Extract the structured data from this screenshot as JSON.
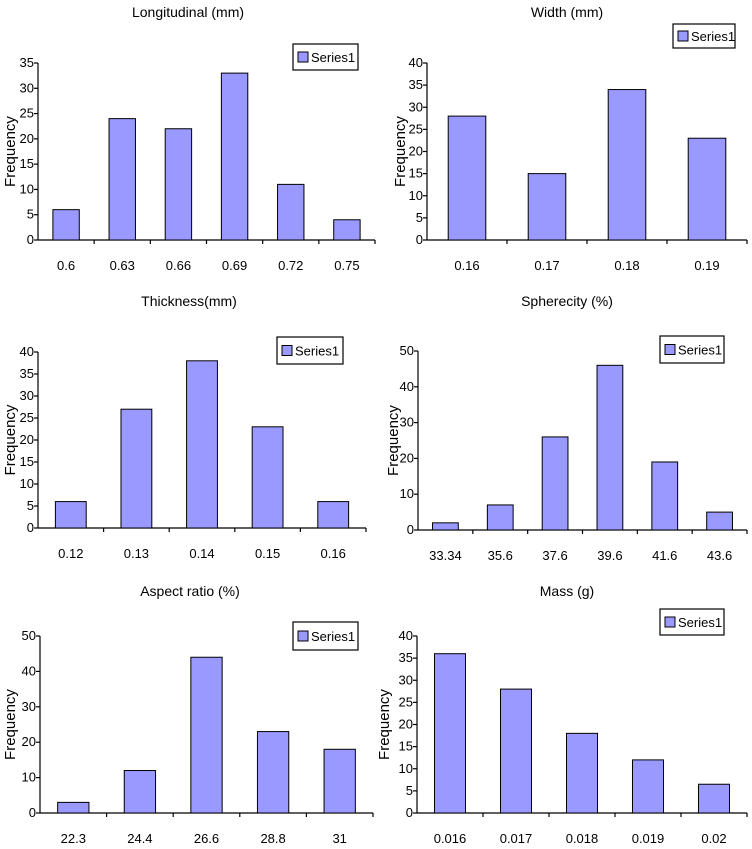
{
  "y_axis_label": "Frequency",
  "legend_label": "Series1",
  "colors": {
    "bar_fill": "#9999ff",
    "bar_stroke": "#000000",
    "axis": "#000000"
  },
  "chart_data": [
    {
      "type": "bar",
      "title": "Longitudinal (mm)",
      "ylabel": "Frequency",
      "categories": [
        "0.6",
        "0.63",
        "0.66",
        "0.69",
        "0.72",
        "0.75"
      ],
      "series": [
        {
          "name": "Series1",
          "values": [
            6,
            24,
            22,
            33,
            11,
            4
          ]
        }
      ],
      "ylim": [
        0,
        35
      ],
      "yticks": [
        0,
        5,
        10,
        15,
        20,
        25,
        30,
        35
      ],
      "legend": "top-right",
      "grid": false
    },
    {
      "type": "bar",
      "title": "Width (mm)",
      "ylabel": "Frequency",
      "categories": [
        "0.16",
        "0.17",
        "0.18",
        "0.19"
      ],
      "series": [
        {
          "name": "Series1",
          "values": [
            28,
            15,
            34,
            23
          ]
        }
      ],
      "ylim": [
        0,
        40
      ],
      "yticks": [
        0,
        5,
        10,
        15,
        20,
        25,
        30,
        35,
        40
      ],
      "legend": "top-right",
      "grid": false
    },
    {
      "type": "bar",
      "title": "Thickness(mm)",
      "ylabel": "Frequency",
      "categories": [
        "0.12",
        "0.13",
        "0.14",
        "0.15",
        "0.16"
      ],
      "series": [
        {
          "name": "Series1",
          "values": [
            6,
            27,
            38,
            23,
            6
          ]
        }
      ],
      "ylim": [
        0,
        40
      ],
      "yticks": [
        0,
        5,
        10,
        15,
        20,
        25,
        30,
        35,
        40
      ],
      "legend": "top-right",
      "grid": false
    },
    {
      "type": "bar",
      "title": "Spherecity (%)",
      "ylabel": "Frequency",
      "categories": [
        "33.34",
        "35.6",
        "37.6",
        "39.6",
        "41.6",
        "43.6"
      ],
      "series": [
        {
          "name": "Series1",
          "values": [
            2,
            7,
            26,
            46,
            19,
            5
          ]
        }
      ],
      "ylim": [
        0,
        50
      ],
      "yticks": [
        0,
        10,
        20,
        30,
        40,
        50
      ],
      "legend": "top-right",
      "grid": false
    },
    {
      "type": "bar",
      "title": "Aspect ratio (%)",
      "ylabel": "Frequency",
      "categories": [
        "22.3",
        "24.4",
        "26.6",
        "28.8",
        "31"
      ],
      "series": [
        {
          "name": "Series1",
          "values": [
            3,
            12,
            44,
            23,
            18
          ]
        }
      ],
      "ylim": [
        0,
        50
      ],
      "yticks": [
        0,
        10,
        20,
        30,
        40,
        50
      ],
      "legend": "top-right",
      "grid": false
    },
    {
      "type": "bar",
      "title": "Mass (g)",
      "ylabel": "Frequency",
      "categories": [
        "0.016",
        "0.017",
        "0.018",
        "0.019",
        "0.02"
      ],
      "series": [
        {
          "name": "Series1",
          "values": [
            36,
            28,
            18,
            12,
            6.5
          ]
        }
      ],
      "ylim": [
        0,
        40
      ],
      "yticks": [
        0,
        5,
        10,
        15,
        20,
        25,
        30,
        35,
        40
      ],
      "legend": "top-right",
      "grid": false
    }
  ]
}
